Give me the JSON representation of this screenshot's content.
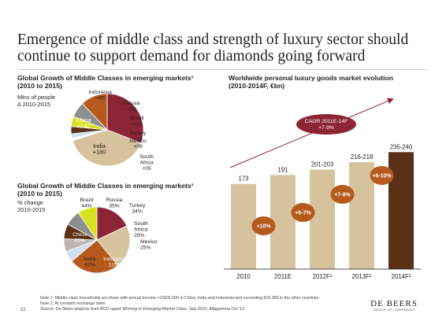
{
  "title": "Emergence of middle class and strength of luxury sector should continue to support demand for diamonds going forward",
  "chart_data": [
    {
      "type": "pie",
      "title": "Global Growth of Middle Classes in emerging markets¹",
      "subtitle": "(2010 to 2015)",
      "unit_label": "Mlns of people",
      "unit_sub": "Δ 2010-2015",
      "slices": [
        {
          "name": "China",
          "display": "+142",
          "value": 142,
          "color": "#8c2536"
        },
        {
          "name": "India",
          "display": "+180",
          "value": 180,
          "color": "#d6c29c"
        },
        {
          "name": "South Africa",
          "display": "+05",
          "value": 5,
          "color": "#ffffff"
        },
        {
          "name": "Mexico",
          "display": "+09",
          "value": 9,
          "color": "#cfe1ec"
        },
        {
          "name": "Turkey",
          "display": "+15",
          "value": 15,
          "color": "#5a3116"
        },
        {
          "name": "Brazil",
          "display": "+21",
          "value": 21,
          "color": "#d7e21f"
        },
        {
          "name": "Russia",
          "display": "+32",
          "value": 32,
          "color": "#8e8e8e"
        },
        {
          "name": "Indonesia",
          "display": "+55",
          "value": 55,
          "color": "#b55a1c"
        }
      ]
    },
    {
      "type": "pie",
      "title": "Global Growth of Middle Classes in emerging markets¹",
      "subtitle": "(2010 to 2015)",
      "unit_label": "% change",
      "unit_sub": "2010-2015",
      "slices": [
        {
          "name": "China",
          "display": "83%",
          "value": 83,
          "color": "#8c2536"
        },
        {
          "name": "India",
          "display": "97%",
          "value": 97,
          "color": "#d6c29c"
        },
        {
          "name": "Indonesia",
          "display": "115%",
          "value": 115,
          "color": "#b55a1c"
        },
        {
          "name": "Mexico",
          "display": "25%",
          "value": 25,
          "color": "#cfe1ec"
        },
        {
          "name": "South Africa",
          "display": "29%",
          "value": 29,
          "color": "#c0b6b0"
        },
        {
          "name": "Turkey",
          "display": "34%",
          "value": 34,
          "color": "#5a3116"
        },
        {
          "name": "Russia",
          "display": "35%",
          "value": 35,
          "color": "#8e8e8e"
        },
        {
          "name": "Brazil",
          "display": "44%",
          "value": 44,
          "color": "#d7e21f"
        }
      ]
    },
    {
      "type": "bar",
      "title": "Worldwide personal luxury goods market evolution",
      "subtitle": "(2010-2014F, €bn)",
      "categories": [
        "2010",
        "2011E",
        "2012F²",
        "2013F²",
        "2014F³"
      ],
      "values": [
        173,
        191,
        202,
        217,
        237.5
      ],
      "value_labels": [
        "173",
        "191",
        "201-203",
        "216-218",
        "235-240"
      ],
      "colors": [
        "#d6c29c",
        "#d6c29c",
        "#d6c29c",
        "#d6c29c",
        "#5a3116"
      ],
      "growth_labels": [
        "+10%",
        "+6-7%",
        "+7-8%",
        "+8-10%"
      ],
      "growth_color": "#b55a1c",
      "cagr_label": "CAGR 2011E-14F\n+7-9%",
      "cagr_color": "#8c2536",
      "ylim": [
        0,
        250
      ]
    }
  ],
  "notes": {
    "note1": "Note 1:  Middle-class households are those with annual income >USD5,000 in China, India and Indonesia and exceeding $10,000 in the other countries.",
    "note2": "Note 2: At constant exchange rates",
    "source": "Source: De Beers analysis from BCG report Winning in Emerging-Market Cities, Sep 2010; Altagamma Oct '12"
  },
  "page_number": "11",
  "logo": {
    "name": "DE BEERS",
    "sub": "GROUP OF COMPANIES"
  }
}
